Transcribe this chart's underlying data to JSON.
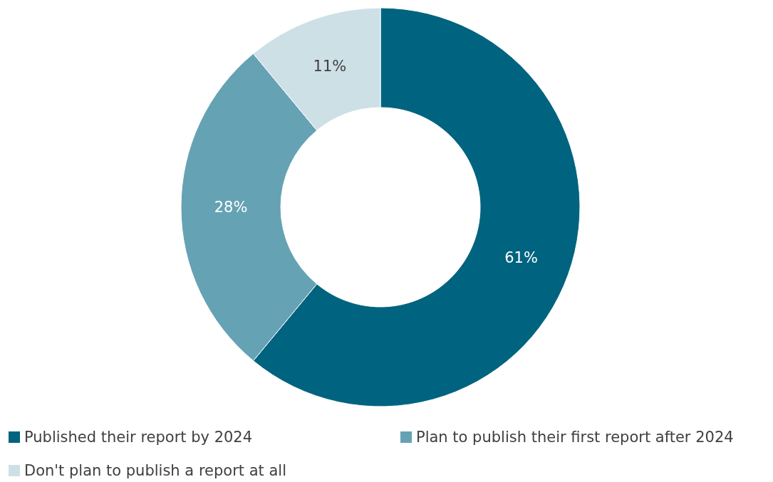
{
  "chart_data": {
    "type": "donut",
    "categories": [
      "Published their report by 2024",
      "Plan to publish their first report after 2024",
      "Don't plan to publish a report at all"
    ],
    "values": [
      61,
      28,
      11
    ],
    "colors": [
      "#00637f",
      "#65a2b4",
      "#cde0e6"
    ],
    "value_labels": [
      "61%",
      "28%",
      "11%"
    ],
    "legend": "bottom"
  }
}
